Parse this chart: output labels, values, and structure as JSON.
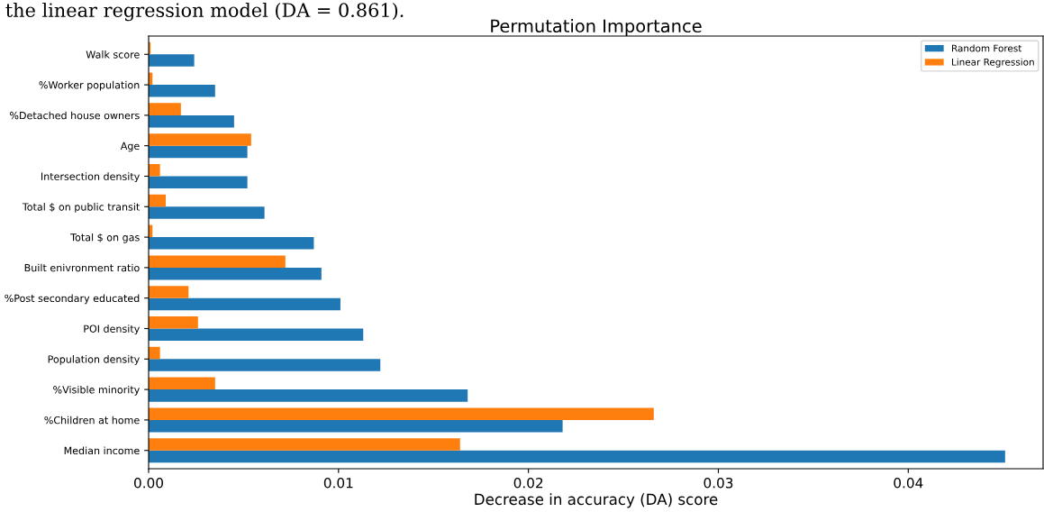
{
  "chart_data": {
    "type": "bar",
    "orientation": "horizontal",
    "title": "Permutation Importance",
    "xlabel": "Decrease in accuracy (DA) score",
    "annotations": [
      "the linear regression model (DA = 0.861)."
    ],
    "categories": [
      "Walk score",
      "%Worker population",
      "%Detached house owners",
      "Age",
      "Intersection density",
      "Total $ on public transit",
      "Total $ on gas",
      "Built enivronment ratio",
      "%Post secondary educated",
      "POI density",
      "Population density",
      "%Visible minority",
      "%Children at home",
      "Median income"
    ],
    "series": [
      {
        "name": "Random Forest",
        "color": "#1f77b4",
        "values": [
          0.0024,
          0.0035,
          0.0045,
          0.0052,
          0.0052,
          0.0061,
          0.0087,
          0.0091,
          0.0101,
          0.0113,
          0.0122,
          0.0168,
          0.0218,
          0.0451
        ]
      },
      {
        "name": "Linear Regression",
        "color": "#ff7f0e",
        "values": [
          0.0001,
          0.0002,
          0.0017,
          0.0054,
          0.0006,
          0.0009,
          0.0002,
          0.0072,
          0.0021,
          0.0026,
          0.0006,
          0.0035,
          0.0266,
          0.0164
        ]
      }
    ],
    "xlim": [
      0,
      0.0471
    ],
    "xticks": [
      {
        "value": 0,
        "label": "0.00"
      },
      0.01,
      0.02,
      0.03,
      0.04
    ],
    "legend": "top right",
    "grid": false
  }
}
